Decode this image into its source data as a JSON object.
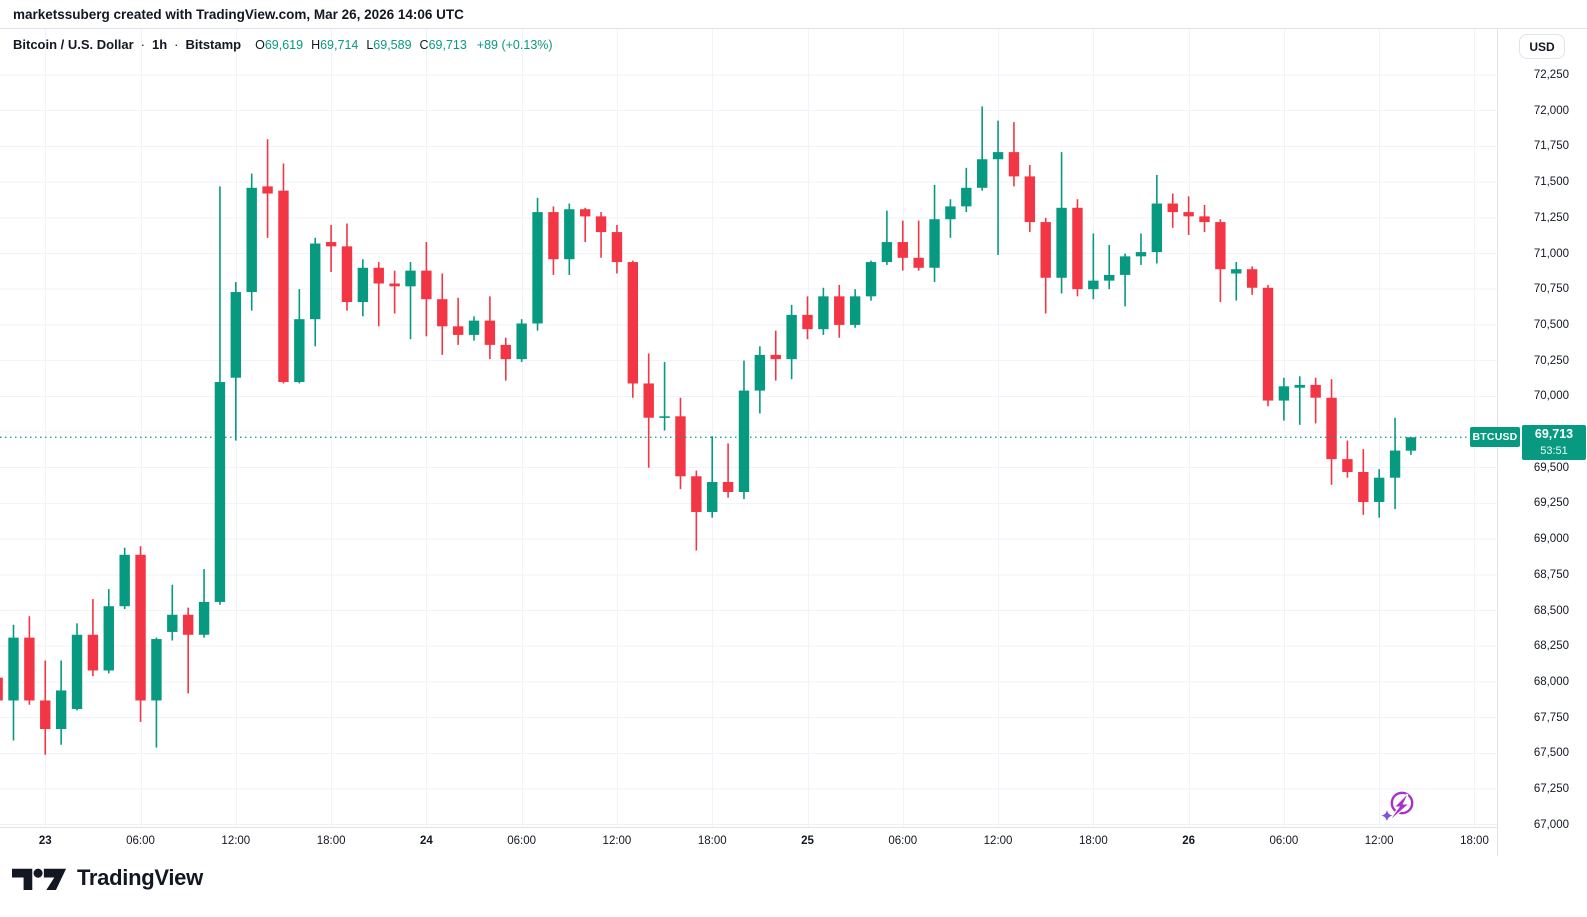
{
  "attribution": {
    "text": "marketssuberg created with TradingView.com, Mar 26, 2026 14:06 UTC"
  },
  "header": {
    "symbol": "Bitcoin / U.S. Dollar",
    "separator": "·",
    "interval": "1h",
    "exchange": "Bitstamp",
    "o_label": "O",
    "o_value": "69,619",
    "h_label": "H",
    "h_value": "69,714",
    "l_label": "L",
    "l_value": "69,589",
    "c_label": "C",
    "c_value": "69,713",
    "change": "+89 (+0.13%)"
  },
  "price_scale": {
    "currency_button": "USD",
    "ticks": [
      "72,250",
      "72,000",
      "71,750",
      "71,500",
      "71,250",
      "71,000",
      "70,750",
      "70,500",
      "70,250",
      "70,000",
      "69,750",
      "69,500",
      "69,250",
      "69,000",
      "68,750",
      "68,500",
      "68,250",
      "68,000",
      "67,750",
      "67,500",
      "67,250",
      "67,000"
    ],
    "last_price_badge": {
      "symbol": "BTCUSD",
      "price": "69,713",
      "countdown": "53:51"
    }
  },
  "time_scale": {
    "ticks": [
      {
        "i": 2,
        "label": "23",
        "major": true
      },
      {
        "i": 8,
        "label": "06:00",
        "major": false
      },
      {
        "i": 14,
        "label": "12:00",
        "major": false
      },
      {
        "i": 20,
        "label": "18:00",
        "major": false
      },
      {
        "i": 26,
        "label": "24",
        "major": true
      },
      {
        "i": 32,
        "label": "06:00",
        "major": false
      },
      {
        "i": 38,
        "label": "12:00",
        "major": false
      },
      {
        "i": 44,
        "label": "18:00",
        "major": false
      },
      {
        "i": 50,
        "label": "25",
        "major": true
      },
      {
        "i": 56,
        "label": "06:00",
        "major": false
      },
      {
        "i": 62,
        "label": "12:00",
        "major": false
      },
      {
        "i": 68,
        "label": "18:00",
        "major": false
      },
      {
        "i": 74,
        "label": "26",
        "major": true
      },
      {
        "i": 80,
        "label": "06:00",
        "major": false
      },
      {
        "i": 86,
        "label": "12:00",
        "major": false
      },
      {
        "i": 92,
        "label": "18:00",
        "major": false
      }
    ]
  },
  "footer": {
    "logo_text": "TradingView"
  },
  "colors": {
    "up": "#089981",
    "down": "#F23645",
    "grid": "#F0F3FA",
    "axis_border": "#E0E3EB",
    "text": "#131722",
    "badge": "#089981",
    "flash_purple": "#A832C8",
    "sparkle_purple": "#7B52E3"
  },
  "chart_data": {
    "type": "candlestick",
    "title": "Bitcoin / U.S. Dollar",
    "symbol": "BTCUSD",
    "interval": "1h",
    "exchange": "Bitstamp",
    "current_price": 69713,
    "price_line": {
      "value": 69713,
      "style": "dotted"
    },
    "last_candle": {
      "open": 69619,
      "high": 69714,
      "low": 69589,
      "close": 69713,
      "change": "+89",
      "change_pct": "+0.13%"
    },
    "y_axis": {
      "min": 67000,
      "max": 72250,
      "tick_step": 250,
      "grid": true
    },
    "x_axis": {
      "start": "Mar 22 21:00",
      "end": "Mar 26 14:00",
      "grid_step_hours": 6
    },
    "candles": {
      "columns": [
        "time",
        "open",
        "high",
        "low",
        "close"
      ],
      "rows": [
        [
          "Mar 22 21:00",
          68030,
          68090,
          67790,
          67870
        ],
        [
          "Mar 22 22:00",
          67870,
          68400,
          67590,
          68310
        ],
        [
          "Mar 22 23:00",
          68310,
          68460,
          67840,
          67870
        ],
        [
          "Mar 23 00:00",
          67870,
          68150,
          67490,
          67670
        ],
        [
          "Mar 23 01:00",
          67670,
          68150,
          67560,
          67940
        ],
        [
          "Mar 23 02:00",
          67810,
          68410,
          67800,
          68330
        ],
        [
          "Mar 23 03:00",
          68330,
          68580,
          68040,
          68080
        ],
        [
          "Mar 23 04:00",
          68080,
          68650,
          68060,
          68530
        ],
        [
          "Mar 23 05:00",
          68530,
          68940,
          68510,
          68890
        ],
        [
          "Mar 23 06:00",
          68890,
          68950,
          67720,
          67870
        ],
        [
          "Mar 23 07:00",
          67870,
          68310,
          67540,
          68300
        ],
        [
          "Mar 23 08:00",
          68350,
          68680,
          68290,
          68470
        ],
        [
          "Mar 23 09:00",
          68470,
          68520,
          67920,
          68330
        ],
        [
          "Mar 23 10:00",
          68330,
          68790,
          68310,
          68560
        ],
        [
          "Mar 23 11:00",
          68560,
          71470,
          68540,
          70100
        ],
        [
          "Mar 23 12:00",
          70130,
          70800,
          69690,
          70730
        ],
        [
          "Mar 23 13:00",
          70730,
          71560,
          70600,
          71460
        ],
        [
          "Mar 23 14:00",
          71470,
          71800,
          71110,
          71420
        ],
        [
          "Mar 23 15:00",
          71440,
          71630,
          70090,
          70100
        ],
        [
          "Mar 23 16:00",
          70100,
          70750,
          70090,
          70540
        ],
        [
          "Mar 23 17:00",
          70540,
          71110,
          70350,
          71070
        ],
        [
          "Mar 23 18:00",
          71080,
          71200,
          70870,
          71050
        ],
        [
          "Mar 23 19:00",
          71050,
          71210,
          70600,
          70660
        ],
        [
          "Mar 23 20:00",
          70660,
          70960,
          70560,
          70900
        ],
        [
          "Mar 23 21:00",
          70900,
          70940,
          70490,
          70790
        ],
        [
          "Mar 23 22:00",
          70790,
          70880,
          70580,
          70770
        ],
        [
          "Mar 23 23:00",
          70770,
          70940,
          70400,
          70880
        ],
        [
          "Mar 24 00:00",
          70880,
          71080,
          70420,
          70680
        ],
        [
          "Mar 24 01:00",
          70680,
          70860,
          70290,
          70490
        ],
        [
          "Mar 24 02:00",
          70490,
          70690,
          70360,
          70430
        ],
        [
          "Mar 24 03:00",
          70430,
          70560,
          70390,
          70530
        ],
        [
          "Mar 24 04:00",
          70530,
          70700,
          70260,
          70360
        ],
        [
          "Mar 24 05:00",
          70360,
          70410,
          70110,
          70260
        ],
        [
          "Mar 24 06:00",
          70260,
          70540,
          70240,
          70510
        ],
        [
          "Mar 24 07:00",
          70510,
          71390,
          70460,
          71290
        ],
        [
          "Mar 24 08:00",
          71290,
          71330,
          70850,
          70960
        ],
        [
          "Mar 24 09:00",
          70960,
          71350,
          70850,
          71310
        ],
        [
          "Mar 24 10:00",
          71310,
          71320,
          71080,
          71260
        ],
        [
          "Mar 24 11:00",
          71260,
          71290,
          70970,
          71150
        ],
        [
          "Mar 24 12:00",
          71150,
          71200,
          70860,
          70940
        ],
        [
          "Mar 24 13:00",
          70940,
          70950,
          69990,
          70090
        ],
        [
          "Mar 24 14:00",
          70090,
          70300,
          69500,
          69850
        ],
        [
          "Mar 24 15:00",
          69850,
          70240,
          69760,
          69860
        ],
        [
          "Mar 24 16:00",
          69860,
          69990,
          69350,
          69440
        ],
        [
          "Mar 24 17:00",
          69440,
          69480,
          68920,
          69190
        ],
        [
          "Mar 24 18:00",
          69190,
          69720,
          69150,
          69400
        ],
        [
          "Mar 24 19:00",
          69400,
          69670,
          69290,
          69330
        ],
        [
          "Mar 24 20:00",
          69330,
          70250,
          69280,
          70040
        ],
        [
          "Mar 24 21:00",
          70040,
          70350,
          69880,
          70290
        ],
        [
          "Mar 24 22:00",
          70290,
          70460,
          70110,
          70260
        ],
        [
          "Mar 24 23:00",
          70260,
          70640,
          70120,
          70570
        ],
        [
          "Mar 25 00:00",
          70570,
          70700,
          70400,
          70470
        ],
        [
          "Mar 25 01:00",
          70470,
          70760,
          70430,
          70700
        ],
        [
          "Mar 25 02:00",
          70700,
          70780,
          70410,
          70500
        ],
        [
          "Mar 25 03:00",
          70500,
          70750,
          70480,
          70700
        ],
        [
          "Mar 25 04:00",
          70700,
          70950,
          70670,
          70940
        ],
        [
          "Mar 25 05:00",
          70940,
          71300,
          70920,
          71080
        ],
        [
          "Mar 25 06:00",
          71080,
          71230,
          70880,
          70970
        ],
        [
          "Mar 25 07:00",
          70970,
          71230,
          70880,
          70900
        ],
        [
          "Mar 25 08:00",
          70900,
          71480,
          70800,
          71240
        ],
        [
          "Mar 25 09:00",
          71240,
          71380,
          71110,
          71330
        ],
        [
          "Mar 25 10:00",
          71330,
          71600,
          71290,
          71460
        ],
        [
          "Mar 25 11:00",
          71460,
          72030,
          71440,
          71660
        ],
        [
          "Mar 25 12:00",
          71660,
          71930,
          70990,
          71710
        ],
        [
          "Mar 25 13:00",
          71710,
          71920,
          71470,
          71540
        ],
        [
          "Mar 25 14:00",
          71540,
          71620,
          71150,
          71220
        ],
        [
          "Mar 25 15:00",
          71220,
          71250,
          70580,
          70830
        ],
        [
          "Mar 25 16:00",
          70830,
          71710,
          70720,
          71320
        ],
        [
          "Mar 25 17:00",
          71320,
          71380,
          70700,
          70750
        ],
        [
          "Mar 25 18:00",
          70750,
          71140,
          70680,
          70810
        ],
        [
          "Mar 25 19:00",
          70810,
          71060,
          70750,
          70850
        ],
        [
          "Mar 25 20:00",
          70850,
          71000,
          70630,
          70980
        ],
        [
          "Mar 25 21:00",
          70980,
          71140,
          70920,
          71010
        ],
        [
          "Mar 25 22:00",
          71010,
          71550,
          70930,
          71350
        ],
        [
          "Mar 25 23:00",
          71350,
          71420,
          71180,
          71290
        ],
        [
          "Mar 26 00:00",
          71290,
          71400,
          71130,
          71260
        ],
        [
          "Mar 26 01:00",
          71260,
          71340,
          71150,
          71220
        ],
        [
          "Mar 26 02:00",
          71220,
          71240,
          70660,
          70890
        ],
        [
          "Mar 26 03:00",
          70860,
          70940,
          70670,
          70890
        ],
        [
          "Mar 26 04:00",
          70890,
          70910,
          70710,
          70760
        ],
        [
          "Mar 26 05:00",
          70760,
          70780,
          69930,
          69970
        ],
        [
          "Mar 26 06:00",
          69970,
          70130,
          69830,
          70070
        ],
        [
          "Mar 26 07:00",
          70060,
          70140,
          69800,
          70080
        ],
        [
          "Mar 26 08:00",
          70080,
          70130,
          69810,
          69990
        ],
        [
          "Mar 26 09:00",
          69990,
          70120,
          69380,
          69560
        ],
        [
          "Mar 26 10:00",
          69560,
          69690,
          69430,
          69470
        ],
        [
          "Mar 26 11:00",
          69470,
          69630,
          69170,
          69260
        ],
        [
          "Mar 26 12:00",
          69260,
          69490,
          69150,
          69430
        ],
        [
          "Mar 26 13:00",
          69430,
          69850,
          69210,
          69620
        ],
        [
          "Mar 26 14:00",
          69619,
          69714,
          69589,
          69713
        ]
      ]
    }
  }
}
